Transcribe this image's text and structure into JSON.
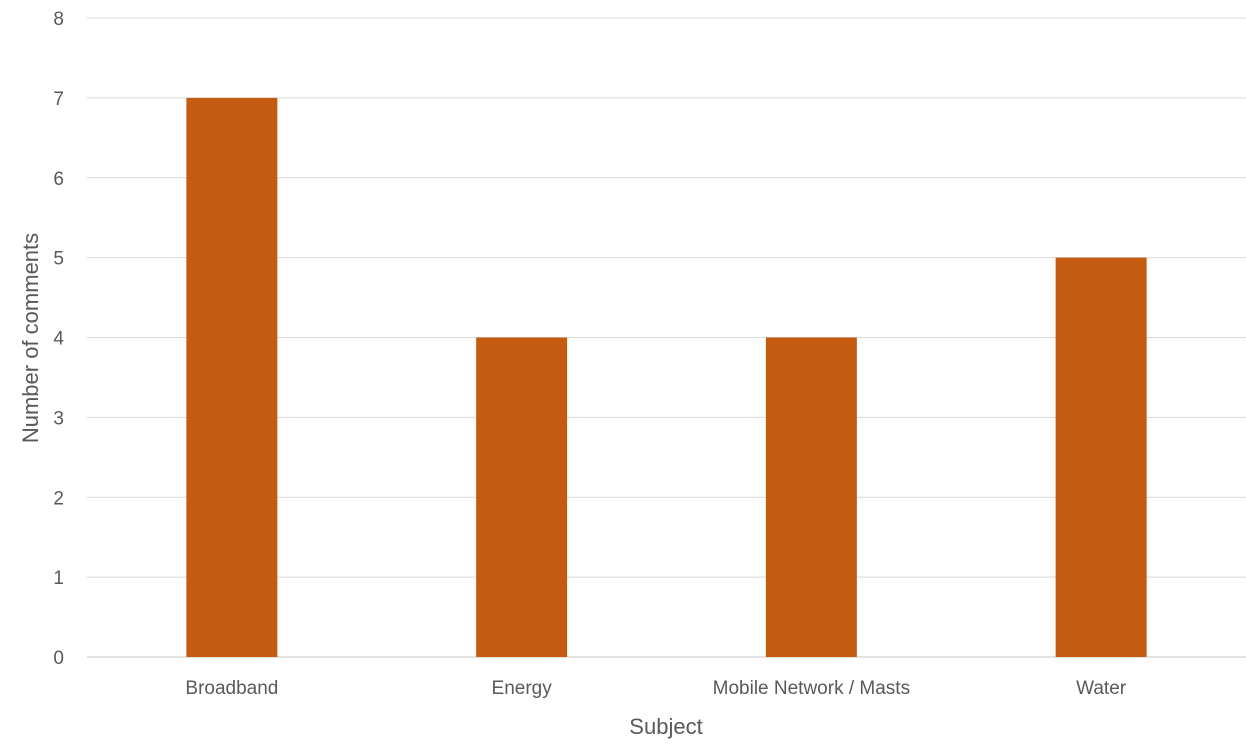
{
  "chart_data": {
    "type": "bar",
    "title": "",
    "xlabel": "Subject",
    "ylabel": "Number of comments",
    "categories": [
      "Broadband",
      "Energy",
      "Mobile Network / Masts",
      "Water"
    ],
    "series": [
      {
        "values": [
          7,
          4,
          4,
          5
        ],
        "color": "#C55A11"
      }
    ],
    "ylim": [
      0,
      8
    ],
    "yticks": [
      "0",
      "1",
      "2",
      "3",
      "4",
      "5",
      "6",
      "7",
      "8"
    ],
    "grid": true,
    "legend": "none",
    "colors": {
      "bar": "#C55A11",
      "grid": "#D9D9D9",
      "text": "#595959"
    }
  }
}
